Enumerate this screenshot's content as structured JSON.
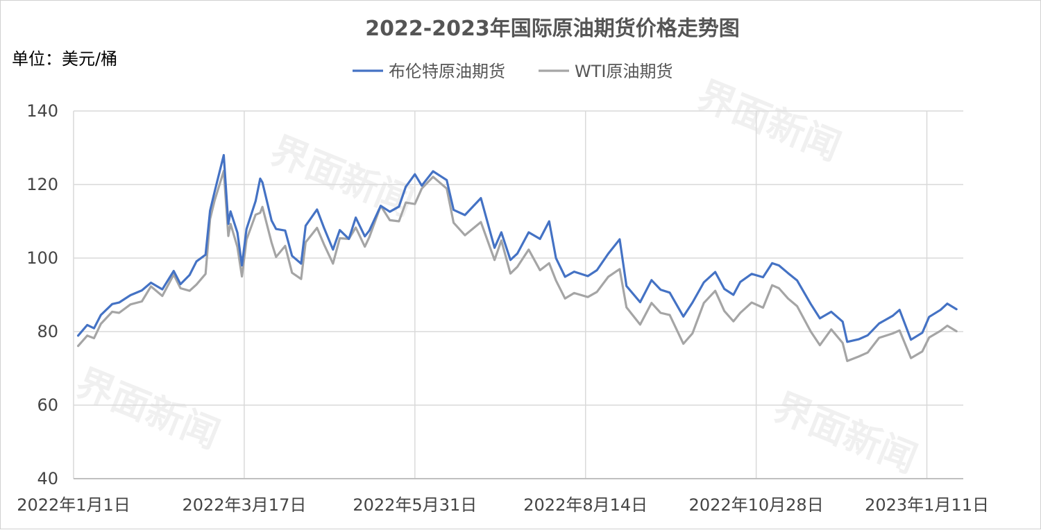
{
  "watermark": "界面新闻",
  "chart_data": {
    "type": "line",
    "title": "2022-2023年国际原油期货价格走势图",
    "unit_label": "单位：美元/桶",
    "xlabel": "",
    "ylabel": "",
    "ylim": [
      40,
      140
    ],
    "yticks": [
      40,
      60,
      80,
      100,
      120,
      140
    ],
    "xlim": [
      "2022-01-01",
      "2023-01-27"
    ],
    "xticks": [
      {
        "date": "2022-01-01",
        "label": "2022年1月1日"
      },
      {
        "date": "2022-03-17",
        "label": "2022年3月17日"
      },
      {
        "date": "2022-05-31",
        "label": "2022年5月31日"
      },
      {
        "date": "2022-08-14",
        "label": "2022年8月14日"
      },
      {
        "date": "2022-10-28",
        "label": "2022年10月28日"
      },
      {
        "date": "2023-01-11",
        "label": "2023年1月11日"
      }
    ],
    "grid": true,
    "legend_position": "top-center",
    "series": [
      {
        "name": "布伦特原油期货",
        "color": "#4472c4",
        "points": [
          [
            "2022-01-03",
            78.9
          ],
          [
            "2022-01-07",
            81.8
          ],
          [
            "2022-01-10",
            80.9
          ],
          [
            "2022-01-13",
            84.5
          ],
          [
            "2022-01-18",
            87.5
          ],
          [
            "2022-01-21",
            87.9
          ],
          [
            "2022-01-26",
            89.9
          ],
          [
            "2022-01-31",
            91.2
          ],
          [
            "2022-02-04",
            93.3
          ],
          [
            "2022-02-09",
            91.5
          ],
          [
            "2022-02-14",
            96.5
          ],
          [
            "2022-02-17",
            92.9
          ],
          [
            "2022-02-21",
            95.4
          ],
          [
            "2022-02-24",
            99.1
          ],
          [
            "2022-02-28",
            100.9
          ],
          [
            "2022-03-02",
            112.9
          ],
          [
            "2022-03-04",
            118.1
          ],
          [
            "2022-03-08",
            128.0
          ],
          [
            "2022-03-10",
            109.3
          ],
          [
            "2022-03-11",
            112.7
          ],
          [
            "2022-03-14",
            106.9
          ],
          [
            "2022-03-16",
            98.0
          ],
          [
            "2022-03-18",
            107.9
          ],
          [
            "2022-03-22",
            115.5
          ],
          [
            "2022-03-24",
            121.6
          ],
          [
            "2022-03-25",
            120.6
          ],
          [
            "2022-03-29",
            110.2
          ],
          [
            "2022-03-31",
            107.9
          ],
          [
            "2022-04-04",
            107.5
          ],
          [
            "2022-04-07",
            100.6
          ],
          [
            "2022-04-11",
            98.5
          ],
          [
            "2022-04-13",
            108.8
          ],
          [
            "2022-04-18",
            113.2
          ],
          [
            "2022-04-21",
            108.3
          ],
          [
            "2022-04-25",
            102.3
          ],
          [
            "2022-04-28",
            107.6
          ],
          [
            "2022-05-02",
            105.2
          ],
          [
            "2022-05-05",
            111.0
          ],
          [
            "2022-05-09",
            105.9
          ],
          [
            "2022-05-11",
            107.5
          ],
          [
            "2022-05-16",
            114.2
          ],
          [
            "2022-05-20",
            112.6
          ],
          [
            "2022-05-24",
            114.0
          ],
          [
            "2022-05-27",
            119.4
          ],
          [
            "2022-05-31",
            122.8
          ],
          [
            "2022-06-03",
            119.7
          ],
          [
            "2022-06-08",
            123.6
          ],
          [
            "2022-06-14",
            121.2
          ],
          [
            "2022-06-17",
            113.1
          ],
          [
            "2022-06-22",
            111.7
          ],
          [
            "2022-06-29",
            116.3
          ],
          [
            "2022-07-05",
            102.8
          ],
          [
            "2022-07-08",
            107.0
          ],
          [
            "2022-07-12",
            99.5
          ],
          [
            "2022-07-15",
            101.2
          ],
          [
            "2022-07-20",
            107.0
          ],
          [
            "2022-07-25",
            105.2
          ],
          [
            "2022-07-29",
            110.0
          ],
          [
            "2022-08-01",
            100.0
          ],
          [
            "2022-08-05",
            94.9
          ],
          [
            "2022-08-09",
            96.3
          ],
          [
            "2022-08-15",
            95.1
          ],
          [
            "2022-08-19",
            96.7
          ],
          [
            "2022-08-24",
            101.2
          ],
          [
            "2022-08-29",
            105.1
          ],
          [
            "2022-09-01",
            92.4
          ],
          [
            "2022-09-07",
            88.0
          ],
          [
            "2022-09-12",
            94.0
          ],
          [
            "2022-09-16",
            91.4
          ],
          [
            "2022-09-20",
            90.6
          ],
          [
            "2022-09-26",
            84.1
          ],
          [
            "2022-09-30",
            87.9
          ],
          [
            "2022-10-05",
            93.4
          ],
          [
            "2022-10-10",
            96.2
          ],
          [
            "2022-10-14",
            91.6
          ],
          [
            "2022-10-18",
            90.0
          ],
          [
            "2022-10-21",
            93.5
          ],
          [
            "2022-10-26",
            95.7
          ],
          [
            "2022-10-31",
            94.8
          ],
          [
            "2022-11-04",
            98.6
          ],
          [
            "2022-11-07",
            98.0
          ],
          [
            "2022-11-11",
            95.9
          ],
          [
            "2022-11-15",
            93.9
          ],
          [
            "2022-11-21",
            87.5
          ],
          [
            "2022-11-25",
            83.6
          ],
          [
            "2022-11-30",
            85.4
          ],
          [
            "2022-12-05",
            82.7
          ],
          [
            "2022-12-07",
            77.2
          ],
          [
            "2022-12-12",
            77.9
          ],
          [
            "2022-12-16",
            79.0
          ],
          [
            "2022-12-21",
            82.2
          ],
          [
            "2022-12-27",
            84.3
          ],
          [
            "2022-12-30",
            85.9
          ],
          [
            "2023-01-04",
            77.8
          ],
          [
            "2023-01-09",
            79.7
          ],
          [
            "2023-01-12",
            84.0
          ],
          [
            "2023-01-17",
            85.9
          ],
          [
            "2023-01-20",
            87.6
          ],
          [
            "2023-01-24",
            86.1
          ]
        ]
      },
      {
        "name": "WTI原油期货",
        "color": "#a5a5a5",
        "points": [
          [
            "2022-01-03",
            76.1
          ],
          [
            "2022-01-07",
            78.9
          ],
          [
            "2022-01-10",
            78.2
          ],
          [
            "2022-01-13",
            82.1
          ],
          [
            "2022-01-18",
            85.4
          ],
          [
            "2022-01-21",
            85.1
          ],
          [
            "2022-01-26",
            87.4
          ],
          [
            "2022-01-31",
            88.2
          ],
          [
            "2022-02-04",
            92.3
          ],
          [
            "2022-02-09",
            89.7
          ],
          [
            "2022-02-14",
            95.5
          ],
          [
            "2022-02-17",
            91.8
          ],
          [
            "2022-02-21",
            91.1
          ],
          [
            "2022-02-24",
            92.8
          ],
          [
            "2022-02-28",
            95.7
          ],
          [
            "2022-03-02",
            110.6
          ],
          [
            "2022-03-04",
            115.7
          ],
          [
            "2022-03-08",
            123.7
          ],
          [
            "2022-03-10",
            106.0
          ],
          [
            "2022-03-11",
            109.3
          ],
          [
            "2022-03-14",
            103.0
          ],
          [
            "2022-03-16",
            95.0
          ],
          [
            "2022-03-18",
            105.0
          ],
          [
            "2022-03-22",
            111.8
          ],
          [
            "2022-03-24",
            112.3
          ],
          [
            "2022-03-25",
            113.9
          ],
          [
            "2022-03-29",
            104.2
          ],
          [
            "2022-03-31",
            100.3
          ],
          [
            "2022-04-04",
            103.3
          ],
          [
            "2022-04-07",
            96.0
          ],
          [
            "2022-04-11",
            94.3
          ],
          [
            "2022-04-13",
            104.3
          ],
          [
            "2022-04-18",
            108.2
          ],
          [
            "2022-04-21",
            103.8
          ],
          [
            "2022-04-25",
            98.5
          ],
          [
            "2022-04-28",
            105.4
          ],
          [
            "2022-05-02",
            105.2
          ],
          [
            "2022-05-05",
            108.3
          ],
          [
            "2022-05-09",
            103.1
          ],
          [
            "2022-05-11",
            105.7
          ],
          [
            "2022-05-16",
            114.2
          ],
          [
            "2022-05-20",
            110.3
          ],
          [
            "2022-05-24",
            110.0
          ],
          [
            "2022-05-27",
            115.1
          ],
          [
            "2022-05-31",
            114.7
          ],
          [
            "2022-06-03",
            118.9
          ],
          [
            "2022-06-08",
            122.1
          ],
          [
            "2022-06-14",
            118.9
          ],
          [
            "2022-06-17",
            109.6
          ],
          [
            "2022-06-22",
            106.2
          ],
          [
            "2022-06-29",
            109.8
          ],
          [
            "2022-07-05",
            99.5
          ],
          [
            "2022-07-08",
            104.8
          ],
          [
            "2022-07-12",
            95.8
          ],
          [
            "2022-07-15",
            97.6
          ],
          [
            "2022-07-20",
            102.3
          ],
          [
            "2022-07-25",
            96.7
          ],
          [
            "2022-07-29",
            98.6
          ],
          [
            "2022-08-01",
            93.9
          ],
          [
            "2022-08-05",
            89.0
          ],
          [
            "2022-08-09",
            90.5
          ],
          [
            "2022-08-15",
            89.4
          ],
          [
            "2022-08-19",
            90.8
          ],
          [
            "2022-08-24",
            94.9
          ],
          [
            "2022-08-29",
            97.0
          ],
          [
            "2022-09-01",
            86.6
          ],
          [
            "2022-09-07",
            81.9
          ],
          [
            "2022-09-12",
            87.8
          ],
          [
            "2022-09-16",
            85.1
          ],
          [
            "2022-09-20",
            84.5
          ],
          [
            "2022-09-26",
            76.7
          ],
          [
            "2022-09-30",
            79.5
          ],
          [
            "2022-10-05",
            87.8
          ],
          [
            "2022-10-10",
            91.1
          ],
          [
            "2022-10-14",
            85.6
          ],
          [
            "2022-10-18",
            82.8
          ],
          [
            "2022-10-21",
            85.1
          ],
          [
            "2022-10-26",
            87.9
          ],
          [
            "2022-10-31",
            86.5
          ],
          [
            "2022-11-04",
            92.6
          ],
          [
            "2022-11-07",
            91.8
          ],
          [
            "2022-11-11",
            89.0
          ],
          [
            "2022-11-15",
            86.9
          ],
          [
            "2022-11-21",
            80.0
          ],
          [
            "2022-11-25",
            76.3
          ],
          [
            "2022-11-30",
            80.6
          ],
          [
            "2022-12-05",
            76.9
          ],
          [
            "2022-12-07",
            72.0
          ],
          [
            "2022-12-12",
            73.2
          ],
          [
            "2022-12-16",
            74.3
          ],
          [
            "2022-12-21",
            78.3
          ],
          [
            "2022-12-27",
            79.5
          ],
          [
            "2022-12-30",
            80.3
          ],
          [
            "2023-01-04",
            72.8
          ],
          [
            "2023-01-09",
            74.6
          ],
          [
            "2023-01-12",
            78.4
          ],
          [
            "2023-01-17",
            80.2
          ],
          [
            "2023-01-20",
            81.6
          ],
          [
            "2023-01-24",
            80.1
          ]
        ]
      }
    ]
  }
}
